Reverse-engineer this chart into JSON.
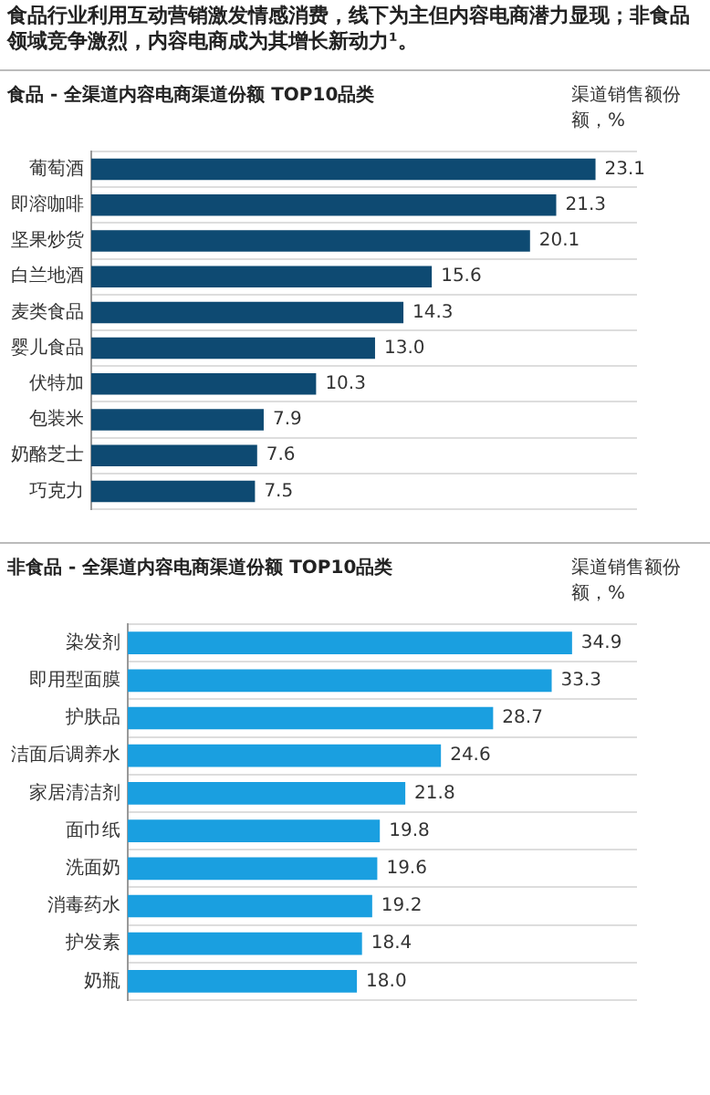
{
  "chart_data": [
    {
      "type": "bar",
      "orientation": "horizontal",
      "title": "食品行业利用互动营销激发情感消费，线下为主但内容电商潜力显现；非食品领域竞争激烈，内容电商成为其增长新动力¹。",
      "subtitle": "食品 - 全渠道内容电商渠道份额 TOP10品类",
      "annotations": [
        "渠道销售额份额，%"
      ],
      "categories": [
        "葡萄酒",
        "即溶咖啡",
        "坚果炒货",
        "白兰地酒",
        "麦类食品",
        "婴儿食品",
        "伏特加",
        "包装米",
        "奶酪芝士",
        "巧克力"
      ],
      "values": [
        23.1,
        21.3,
        20.1,
        15.6,
        14.3,
        13.0,
        10.3,
        7.9,
        7.6,
        7.5
      ],
      "value_labels": [
        "23.1",
        "21.3",
        "20.1",
        "15.6",
        "14.3",
        "13.0",
        "10.3",
        "7.9",
        "7.6",
        "7.5"
      ],
      "color": "#0e4a72",
      "grid": "y",
      "tick_labels": "y",
      "legend": false
    },
    {
      "type": "bar",
      "orientation": "horizontal",
      "subtitle": "非食品 - 全渠道内容电商渠道份额 TOP10品类",
      "annotations": [
        "渠道销售额份额，%"
      ],
      "categories": [
        "染发剂",
        "即用型面膜",
        "护肤品",
        "洁面后调养水",
        "家居清洁剂",
        "面巾纸",
        "洗面奶",
        "消毒药水",
        "护发素",
        "奶瓶"
      ],
      "values": [
        34.9,
        33.3,
        28.7,
        24.6,
        21.8,
        19.8,
        19.6,
        19.2,
        18.4,
        18.0
      ],
      "value_labels": [
        "34.9",
        "33.3",
        "28.7",
        "24.6",
        "21.8",
        "19.8",
        "19.6",
        "19.2",
        "18.4",
        "18.0"
      ],
      "color": "#1a9fe0",
      "grid": "y",
      "tick_labels": "y",
      "legend": false
    }
  ]
}
